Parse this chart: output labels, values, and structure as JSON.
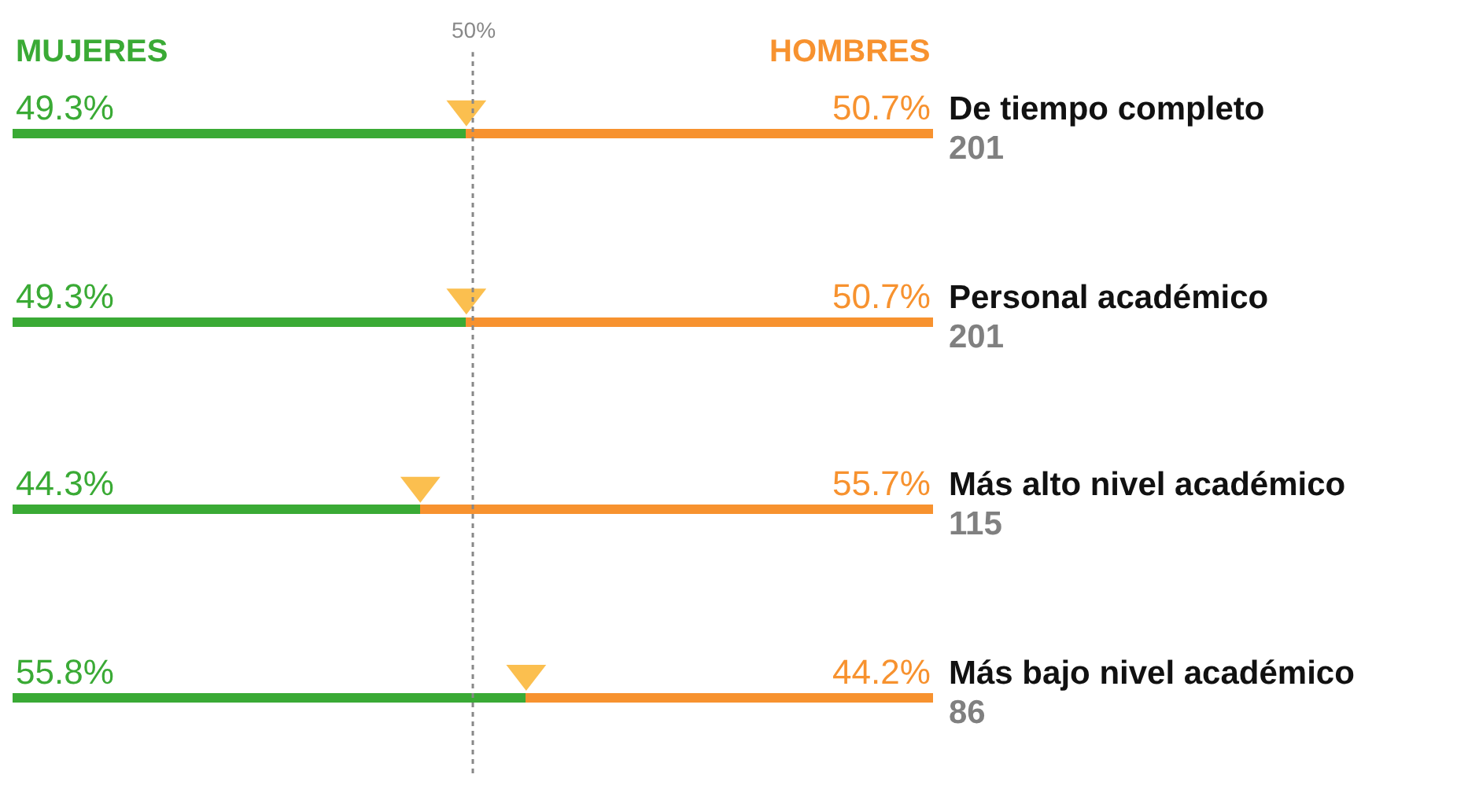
{
  "chart_data": {
    "type": "bar",
    "orientation": "horizontal",
    "stacked": true,
    "categories": [
      "De tiempo completo",
      "Personal académico",
      "Más alto nivel académico",
      "Más bajo nivel académico"
    ],
    "series": [
      {
        "name": "MUJERES",
        "color": "#3aaa35",
        "values": [
          49.3,
          49.3,
          44.3,
          55.8
        ],
        "value_labels": [
          "49.3%",
          "49.3%",
          "44.3%",
          "55.8%"
        ]
      },
      {
        "name": "HOMBRES",
        "color": "#f7922f",
        "values": [
          50.7,
          50.7,
          55.7,
          44.2
        ],
        "value_labels": [
          "50.7%",
          "50.7%",
          "55.7%",
          "44.2%"
        ]
      },
      {
        "type": "scatter",
        "color": "#fbbf4f",
        "marker": "triangle",
        "values": [
          49.3,
          49.3,
          44.3,
          55.8
        ]
      }
    ],
    "annotations": [
      "201",
      "201",
      "115",
      "86"
    ],
    "ref_lines": [
      {
        "axis": "x",
        "value": 50,
        "label": "50%",
        "color": "#888888",
        "line_style": "dotted"
      }
    ],
    "xlim": [
      0,
      100
    ],
    "tick_labels": false
  }
}
